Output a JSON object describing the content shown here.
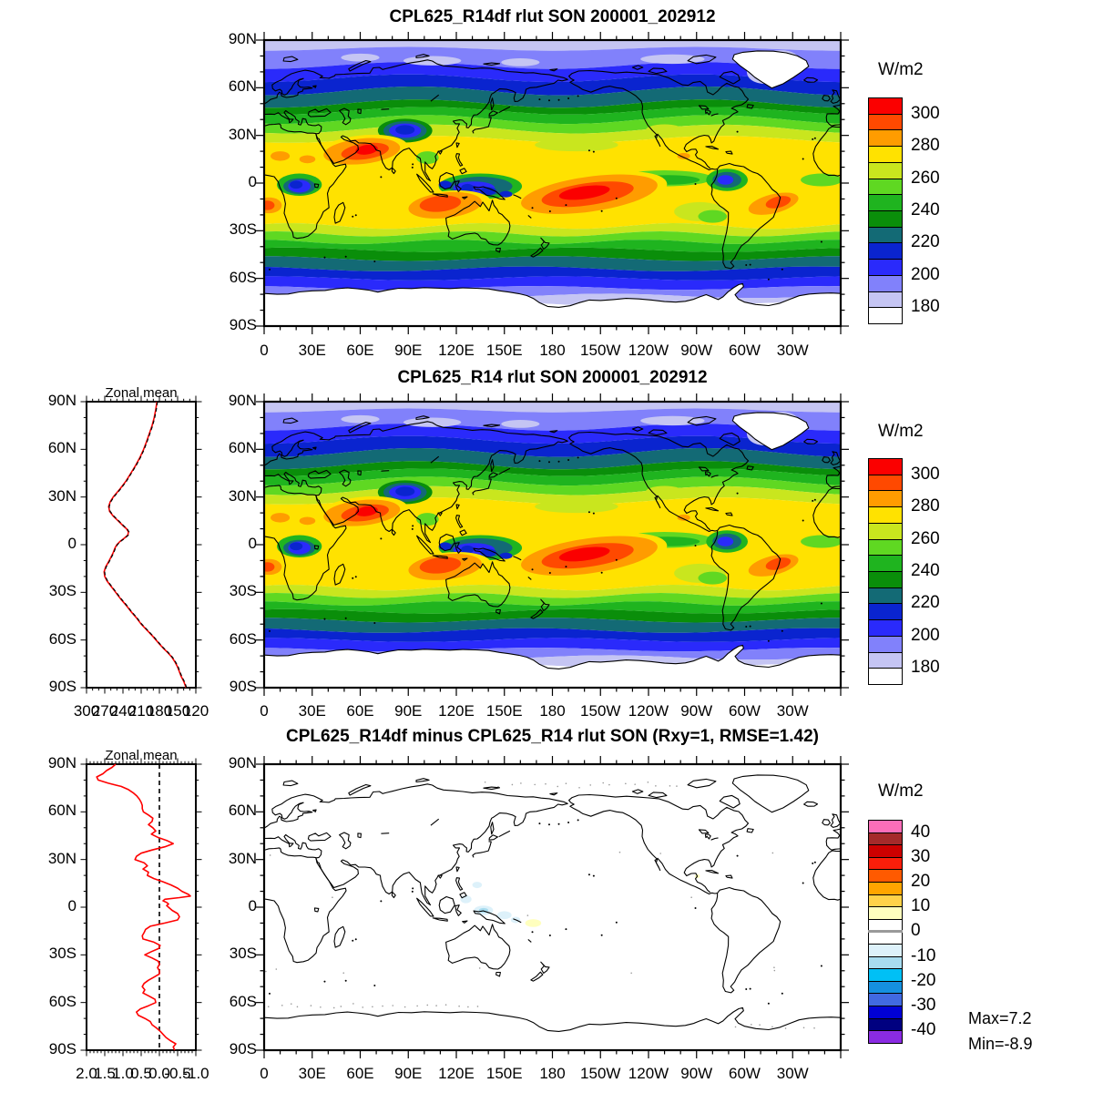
{
  "panels": [
    {
      "title": "CPL625_R14df rlut SON 200001_202912",
      "units_label": "W/m2",
      "colorbar_labels": [
        "300",
        "280",
        "260",
        "240",
        "220",
        "200",
        "180"
      ],
      "colorbar_colors": [
        "#fb0000",
        "#ff4900",
        "#ff9c00",
        "#ffe200",
        "#c9e61e",
        "#5fd822",
        "#1fb41f",
        "#0a8e0a",
        "#136a75",
        "#0a24cf",
        "#2a2afb",
        "#8181fb",
        "#c5c5f3",
        "#ffffff"
      ],
      "lat_tick_labels": [
        "90N",
        "60N",
        "30N",
        "0",
        "30S",
        "60S",
        "90S"
      ],
      "lon_tick_labels": [
        "0",
        "30E",
        "60E",
        "90E",
        "120E",
        "150E",
        "180",
        "150W",
        "120W",
        "90W",
        "60W",
        "30W"
      ]
    },
    {
      "title": "CPL625_R14 rlut SON 200001_202912",
      "units_label": "W/m2",
      "zonal_title": "Zonal mean",
      "zonal_x_tick_labels": [
        "300",
        "270",
        "240",
        "210",
        "180",
        "150",
        "120"
      ],
      "colorbar_labels": [
        "300",
        "280",
        "260",
        "240",
        "220",
        "200",
        "180"
      ],
      "colorbar_colors": [
        "#fb0000",
        "#ff4900",
        "#ff9c00",
        "#ffe200",
        "#c9e61e",
        "#5fd822",
        "#1fb41f",
        "#0a8e0a",
        "#136a75",
        "#0a24cf",
        "#2a2afb",
        "#8181fb",
        "#c5c5f3",
        "#ffffff"
      ],
      "lat_tick_labels": [
        "90N",
        "60N",
        "30N",
        "0",
        "30S",
        "60S",
        "90S"
      ],
      "lon_tick_labels": [
        "0",
        "30E",
        "60E",
        "90E",
        "120E",
        "150E",
        "180",
        "150W",
        "120W",
        "90W",
        "60W",
        "30W"
      ]
    },
    {
      "title": "CPL625_R14df minus CPL625_R14 rlut SON (Rxy=1, RMSE=1.42)",
      "units_label": "W/m2",
      "zonal_title": "Zonal mean",
      "zonal_x_tick_labels": [
        "2.0",
        "1.5",
        "1.0",
        "0.5",
        "0.0",
        "-0.5",
        "-1.0"
      ],
      "colorbar_labels": [
        "40",
        "30",
        "20",
        "10",
        "0",
        "-10",
        "-20",
        "-30",
        "-40"
      ],
      "colorbar_colors": [
        "#fc6eb9",
        "#a52a2a",
        "#cd0000",
        "#fa1e0a",
        "#ff5a00",
        "#ffa500",
        "#ffd24a",
        "#ffffbe",
        "#ffffff",
        "#ffffff",
        "#ddf1fa",
        "#a8dcef",
        "#00c0f5",
        "#1590e0",
        "#4169e1",
        "#0000d5",
        "#000080",
        "#8a2be2"
      ],
      "stats_max": "Max=7.2",
      "stats_min": "Min=-8.9",
      "lat_tick_labels": [
        "90N",
        "60N",
        "30N",
        "0",
        "30S",
        "60S",
        "90S"
      ],
      "lon_tick_labels": [
        "0",
        "30E",
        "60E",
        "90E",
        "120E",
        "150E",
        "180",
        "150W",
        "120W",
        "90W",
        "60W",
        "30W"
      ]
    }
  ],
  "chart_data": [
    {
      "type": "heatmap",
      "subtype": "filled_contour_global_map",
      "title": "CPL625_R14df rlut SON 200001_202912",
      "units": "W/m2",
      "lon_range": [
        0,
        360
      ],
      "lat_range": [
        -90,
        90
      ],
      "contour_interval": 10,
      "colorbar_tick_values": [
        300,
        280,
        260,
        240,
        220,
        200,
        180
      ],
      "field_maxima_regions": "red >300 over Arabia-India, tropical Indian Ocean/N Australia, central S Pacific, S America/S Atlantic; minima white <180 over Greenland and Antarctica"
    },
    {
      "type": "heatmap",
      "subtype": "filled_contour_global_map",
      "title": "CPL625_R14 rlut SON 200001_202912",
      "units": "W/m2",
      "lon_range": [
        0,
        360
      ],
      "lat_range": [
        -90,
        90
      ],
      "contour_interval": 10,
      "colorbar_tick_values": [
        300,
        280,
        260,
        240,
        220,
        200,
        180
      ],
      "zonal_mean": {
        "type": "line",
        "title": "Zonal mean",
        "x_axis_ticks": [
          300,
          270,
          240,
          210,
          180,
          150,
          120
        ],
        "x_axis_reversed": true,
        "lines": [
          "red_solid",
          "black_dashed_overlapping"
        ],
        "lat_value_pairs": [
          [
            90,
            184
          ],
          [
            85,
            186
          ],
          [
            80,
            188.5
          ],
          [
            75,
            192
          ],
          [
            70,
            196.5
          ],
          [
            65,
            201
          ],
          [
            60,
            206
          ],
          [
            55,
            212
          ],
          [
            50,
            219
          ],
          [
            45,
            227
          ],
          [
            40,
            235
          ],
          [
            35,
            245
          ],
          [
            30,
            256
          ],
          [
            27,
            261
          ],
          [
            24,
            263.5
          ],
          [
            21,
            262
          ],
          [
            18,
            256
          ],
          [
            15,
            248
          ],
          [
            12,
            240
          ],
          [
            10,
            234
          ],
          [
            8,
            231
          ],
          [
            6,
            232
          ],
          [
            4,
            238
          ],
          [
            2,
            245
          ],
          [
            0,
            250
          ],
          [
            -2,
            253
          ],
          [
            -5,
            256
          ],
          [
            -8,
            260
          ],
          [
            -11,
            264
          ],
          [
            -14,
            268.5
          ],
          [
            -17,
            271
          ],
          [
            -20,
            270
          ],
          [
            -23,
            266
          ],
          [
            -26,
            260
          ],
          [
            -30,
            252
          ],
          [
            -34,
            244
          ],
          [
            -38,
            235
          ],
          [
            -42,
            227
          ],
          [
            -46,
            218
          ],
          [
            -50,
            210
          ],
          [
            -54,
            200
          ],
          [
            -58,
            190
          ],
          [
            -62,
            181
          ],
          [
            -65,
            174
          ],
          [
            -68,
            166
          ],
          [
            -71,
            159
          ],
          [
            -74,
            154
          ],
          [
            -77,
            150
          ],
          [
            -80,
            147
          ],
          [
            -83,
            144
          ],
          [
            -86,
            140
          ],
          [
            -90,
            136
          ]
        ]
      }
    },
    {
      "type": "heatmap",
      "subtype": "difference_map",
      "title": "CPL625_R14df minus CPL625_R14 rlut SON (Rxy=1, RMSE=1.42)",
      "units": "W/m2",
      "rxy": 1,
      "rmse": 1.42,
      "max": 7.2,
      "min": -8.9,
      "contour_interval": 5,
      "colorbar_tick_values": [
        40,
        30,
        20,
        10,
        0,
        -10,
        -20,
        -30,
        -40
      ],
      "zonal_mean": {
        "type": "line",
        "title": "Zonal mean",
        "x_axis_ticks": [
          2.0,
          1.5,
          1.0,
          0.5,
          0.0,
          -0.5,
          -1.0
        ],
        "x_axis_reversed": true,
        "zero_reference_line": 0,
        "lines": [
          "red_solid"
        ],
        "lat_value_pairs": [
          [
            90,
            1.2
          ],
          [
            88,
            1.3
          ],
          [
            86,
            1.45
          ],
          [
            84,
            1.55
          ],
          [
            82,
            1.72
          ],
          [
            80,
            1.68
          ],
          [
            78,
            1.4
          ],
          [
            76,
            1.05
          ],
          [
            74,
            0.85
          ],
          [
            72,
            0.72
          ],
          [
            70,
            0.62
          ],
          [
            68,
            0.55
          ],
          [
            66,
            0.5
          ],
          [
            64,
            0.47
          ],
          [
            62,
            0.47
          ],
          [
            60,
            0.44
          ],
          [
            58,
            0.3
          ],
          [
            56,
            0.18
          ],
          [
            54,
            0.2
          ],
          [
            52,
            0.3
          ],
          [
            50,
            0.18
          ],
          [
            48,
            0.1
          ],
          [
            46,
            0.22
          ],
          [
            44,
            0.05
          ],
          [
            42,
            -0.2
          ],
          [
            40,
            -0.38
          ],
          [
            38,
            -0.15
          ],
          [
            36,
            0.2
          ],
          [
            34,
            0.5
          ],
          [
            32,
            0.63
          ],
          [
            30,
            0.67
          ],
          [
            28,
            0.42
          ],
          [
            26,
            0.33
          ],
          [
            24,
            0.45
          ],
          [
            22,
            0.3
          ],
          [
            20,
            0.33
          ],
          [
            18,
            0.15
          ],
          [
            16,
            -0.1
          ],
          [
            14,
            -0.32
          ],
          [
            12,
            -0.5
          ],
          [
            10,
            -0.62
          ],
          [
            8,
            -0.8
          ],
          [
            7,
            -0.85
          ],
          [
            6,
            -0.55
          ],
          [
            5,
            -0.15
          ],
          [
            4,
            -0.1
          ],
          [
            3,
            -0.2
          ],
          [
            2,
            -0.25
          ],
          [
            1,
            -0.2
          ],
          [
            0,
            -0.25
          ],
          [
            -2,
            -0.35
          ],
          [
            -4,
            -0.5
          ],
          [
            -6,
            -0.55
          ],
          [
            -8,
            -0.5
          ],
          [
            -10,
            -0.15
          ],
          [
            -12,
            0.25
          ],
          [
            -14,
            0.38
          ],
          [
            -16,
            0.42
          ],
          [
            -18,
            0.47
          ],
          [
            -20,
            0.45
          ],
          [
            -22,
            0.15
          ],
          [
            -24,
            -0.02
          ],
          [
            -26,
            0.02
          ],
          [
            -28,
            0.22
          ],
          [
            -30,
            0.4
          ],
          [
            -32,
            0.2
          ],
          [
            -34,
            0.03
          ],
          [
            -36,
            0
          ],
          [
            -38,
            0.05
          ],
          [
            -40,
            0
          ],
          [
            -42,
            0
          ],
          [
            -44,
            0.15
          ],
          [
            -46,
            0.3
          ],
          [
            -48,
            0.42
          ],
          [
            -50,
            0.47
          ],
          [
            -52,
            0.4
          ],
          [
            -54,
            0.45
          ],
          [
            -56,
            0.28
          ],
          [
            -58,
            0.12
          ],
          [
            -60,
            0.1
          ],
          [
            -62,
            0.3
          ],
          [
            -64,
            0.52
          ],
          [
            -66,
            0.63
          ],
          [
            -68,
            0.58
          ],
          [
            -70,
            0.4
          ],
          [
            -72,
            0.25
          ],
          [
            -74,
            0.2
          ],
          [
            -76,
            0.08
          ],
          [
            -78,
            -0.02
          ],
          [
            -80,
            -0.1
          ],
          [
            -82,
            -0.18
          ],
          [
            -84,
            -0.3
          ],
          [
            -86,
            -0.45
          ],
          [
            -88,
            -0.38
          ],
          [
            -90,
            -0.42
          ]
        ]
      }
    }
  ]
}
